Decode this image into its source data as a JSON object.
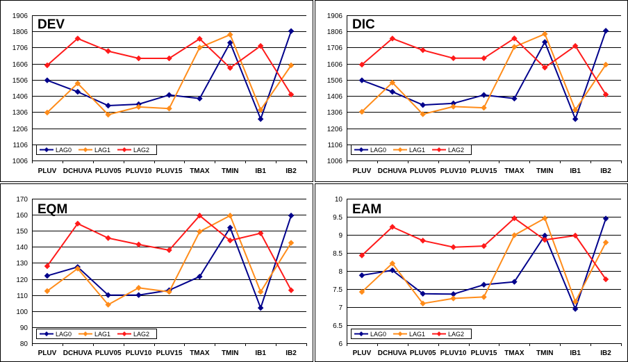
{
  "colors": {
    "LAG0": "#00008B",
    "LAG1": "#FF8C1A",
    "LAG2": "#FF1A1A"
  },
  "chart_data": [
    {
      "type": "line",
      "title": "DEV",
      "categories": [
        "PLUV",
        "DCHUVA",
        "PLUV05",
        "PLUV10",
        "PLUV15",
        "TMAX",
        "TMIN",
        "IB1",
        "IB2"
      ],
      "yticks": [
        "1006",
        "1106",
        "1206",
        "1306",
        "1406",
        "1506",
        "1606",
        "1706",
        "1806",
        "1906"
      ],
      "ylim": [
        1006,
        1906
      ],
      "grid": true,
      "legend": "bottom-left",
      "series": [
        {
          "name": "LAG0",
          "values": [
            1503,
            1432,
            1346,
            1355,
            1412,
            1390,
            1736,
            1263,
            1808
          ]
        },
        {
          "name": "LAG1",
          "values": [
            1303,
            1484,
            1290,
            1338,
            1328,
            1706,
            1786,
            1320,
            1596
          ]
        },
        {
          "name": "LAG2",
          "values": [
            1596,
            1762,
            1684,
            1639,
            1639,
            1760,
            1580,
            1716,
            1415
          ]
        }
      ]
    },
    {
      "type": "line",
      "title": "DIC",
      "categories": [
        "PLUV",
        "DCHUVA",
        "PLUV05",
        "PLUV10",
        "PLUV15",
        "TMAX",
        "TMIN",
        "IB1",
        "IB2"
      ],
      "yticks": [
        "1006",
        "1106",
        "1206",
        "1306",
        "1406",
        "1506",
        "1606",
        "1706",
        "1806",
        "1906"
      ],
      "ylim": [
        1006,
        1906
      ],
      "grid": true,
      "legend": "bottom-left",
      "series": [
        {
          "name": "LAG0",
          "values": [
            1503,
            1432,
            1350,
            1360,
            1412,
            1390,
            1740,
            1263,
            1810
          ]
        },
        {
          "name": "LAG1",
          "values": [
            1308,
            1489,
            1293,
            1340,
            1333,
            1710,
            1790,
            1320,
            1600
          ]
        },
        {
          "name": "LAG2",
          "values": [
            1600,
            1762,
            1690,
            1640,
            1640,
            1763,
            1582,
            1716,
            1415
          ]
        }
      ]
    },
    {
      "type": "line",
      "title": "EQM",
      "categories": [
        "PLUV",
        "DCHUVA",
        "PLUV05",
        "PLUV10",
        "PLUV15",
        "TMAX",
        "TMIN",
        "IB1",
        "IB2"
      ],
      "yticks": [
        "80",
        "90",
        "100",
        "110",
        "120",
        "130",
        "140",
        "150",
        "160",
        "170"
      ],
      "ylim": [
        80,
        170
      ],
      "grid": true,
      "legend": "bottom-left",
      "series": [
        {
          "name": "LAG0",
          "values": [
            122.0,
            127.5,
            110.0,
            110.0,
            113.0,
            121.5,
            152.0,
            102.0,
            159.5
          ]
        },
        {
          "name": "LAG1",
          "values": [
            112.5,
            126.5,
            104.0,
            114.5,
            112.0,
            149.5,
            159.5,
            112.0,
            142.5
          ]
        },
        {
          "name": "LAG2",
          "values": [
            128.0,
            154.5,
            145.5,
            141.5,
            138.0,
            159.5,
            144.0,
            148.5,
            113.0
          ]
        }
      ]
    },
    {
      "type": "line",
      "title": "EAM",
      "categories": [
        "PLUV",
        "DCHUVA",
        "PLUV05",
        "PLUV10",
        "PLUV15",
        "TMAX",
        "TMIN",
        "IB1",
        "IB2"
      ],
      "yticks": [
        "6",
        "6.5",
        "7",
        "7.5",
        "8",
        "8.5",
        "9",
        "9.5",
        "10"
      ],
      "ylim": [
        6,
        10
      ],
      "grid": true,
      "legend": "bottom-left",
      "series": [
        {
          "name": "LAG0",
          "values": [
            7.88,
            8.02,
            7.37,
            7.36,
            7.62,
            7.7,
            8.98,
            6.95,
            9.45
          ]
        },
        {
          "name": "LAG1",
          "values": [
            7.42,
            8.21,
            7.1,
            7.24,
            7.28,
            8.99,
            9.46,
            7.15,
            8.79
          ]
        },
        {
          "name": "LAG2",
          "values": [
            8.43,
            9.22,
            8.84,
            8.66,
            8.69,
            9.46,
            8.86,
            8.98,
            7.77
          ]
        }
      ]
    }
  ]
}
